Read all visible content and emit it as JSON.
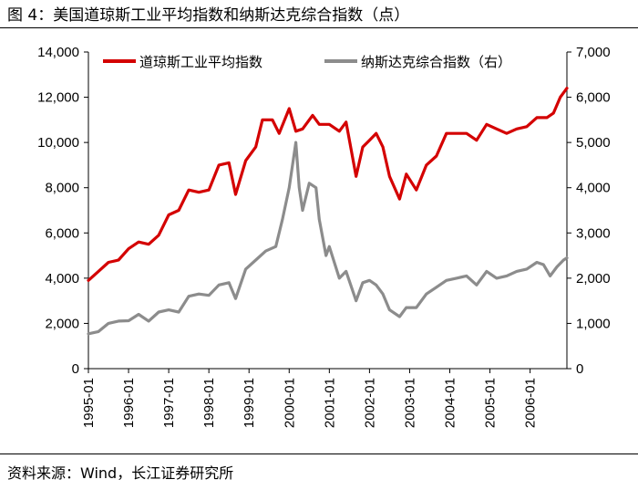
{
  "figure": {
    "title": "图 4：美国道琼斯工业平均指数和纳斯达克综合指数（点）",
    "source": "资料来源：Wind，长江证券研究所"
  },
  "chart_data": {
    "type": "line",
    "title": "",
    "legend_placement": "top",
    "grid": false,
    "x_ticks": [
      "1995-01",
      "1996-01",
      "1997-01",
      "1998-01",
      "1999-01",
      "2000-01",
      "2001-01",
      "2002-01",
      "2003-01",
      "2004-01",
      "2005-01",
      "2006-01"
    ],
    "x_range": [
      "1995-01",
      "2006-12"
    ],
    "y_left": {
      "ylim": [
        0,
        14000
      ],
      "ticks": [
        "0",
        "2,000",
        "4,000",
        "6,000",
        "8,000",
        "10,000",
        "12,000",
        "14,000"
      ]
    },
    "y_right": {
      "ylim": [
        0,
        7000
      ],
      "ticks": [
        "0",
        "1,000",
        "2,000",
        "3,000",
        "4,000",
        "5,000",
        "6,000",
        "7,000"
      ]
    },
    "series": [
      {
        "name": "道琼斯工业平均指数",
        "axis": "left",
        "color": "#d40000",
        "x": [
          "1995-01",
          "1995-04",
          "1995-07",
          "1995-10",
          "1996-01",
          "1996-04",
          "1996-07",
          "1996-10",
          "1997-01",
          "1997-04",
          "1997-07",
          "1997-10",
          "1998-01",
          "1998-04",
          "1998-07",
          "1998-09",
          "1998-12",
          "1999-03",
          "1999-05",
          "1999-08",
          "1999-10",
          "2000-01",
          "2000-03",
          "2000-05",
          "2000-08",
          "2000-10",
          "2001-01",
          "2001-04",
          "2001-06",
          "2001-09",
          "2001-11",
          "2002-01",
          "2002-03",
          "2002-05",
          "2002-07",
          "2002-10",
          "2002-12",
          "2003-03",
          "2003-06",
          "2003-09",
          "2003-12",
          "2004-03",
          "2004-06",
          "2004-09",
          "2004-12",
          "2005-03",
          "2005-06",
          "2005-09",
          "2005-12",
          "2006-03",
          "2006-06",
          "2006-08",
          "2006-10",
          "2006-12"
        ],
        "values": [
          3900,
          4300,
          4700,
          4800,
          5300,
          5600,
          5500,
          5900,
          6800,
          7000,
          7900,
          7800,
          7900,
          9000,
          9100,
          7700,
          9200,
          9800,
          11000,
          11000,
          10400,
          11500,
          10500,
          10600,
          11200,
          10800,
          10800,
          10500,
          10900,
          8500,
          9800,
          10100,
          10400,
          9800,
          8500,
          7500,
          8600,
          7900,
          9000,
          9400,
          10400,
          10400,
          10400,
          10100,
          10800,
          10600,
          10400,
          10600,
          10700,
          11100,
          11100,
          11300,
          12000,
          12400
        ]
      },
      {
        "name": "纳斯达克综合指数（右）",
        "axis": "right",
        "color": "#8c8c8c",
        "x": [
          "1995-01",
          "1995-04",
          "1995-07",
          "1995-10",
          "1996-01",
          "1996-04",
          "1996-07",
          "1996-10",
          "1997-01",
          "1997-04",
          "1997-07",
          "1997-10",
          "1998-01",
          "1998-04",
          "1998-07",
          "1998-09",
          "1998-12",
          "1999-03",
          "1999-06",
          "1999-09",
          "1999-11",
          "2000-01",
          "2000-03",
          "2000-04",
          "2000-05",
          "2000-07",
          "2000-09",
          "2000-10",
          "2000-12",
          "2001-01",
          "2001-04",
          "2001-06",
          "2001-09",
          "2001-11",
          "2002-01",
          "2002-03",
          "2002-05",
          "2002-07",
          "2002-10",
          "2002-12",
          "2003-03",
          "2003-06",
          "2003-09",
          "2003-12",
          "2004-03",
          "2004-06",
          "2004-09",
          "2004-12",
          "2005-03",
          "2005-06",
          "2005-09",
          "2005-12",
          "2006-03",
          "2006-05",
          "2006-07",
          "2006-09",
          "2006-11",
          "2006-12"
        ],
        "values": [
          770,
          820,
          1000,
          1050,
          1060,
          1200,
          1050,
          1250,
          1300,
          1250,
          1600,
          1650,
          1620,
          1850,
          1900,
          1550,
          2200,
          2400,
          2600,
          2700,
          3300,
          4000,
          5000,
          4000,
          3500,
          4100,
          4000,
          3300,
          2500,
          2700,
          2000,
          2150,
          1500,
          1900,
          1950,
          1850,
          1650,
          1300,
          1150,
          1350,
          1350,
          1650,
          1800,
          1950,
          2000,
          2050,
          1850,
          2150,
          2000,
          2050,
          2150,
          2200,
          2350,
          2300,
          2050,
          2250,
          2400,
          2450
        ]
      }
    ]
  }
}
